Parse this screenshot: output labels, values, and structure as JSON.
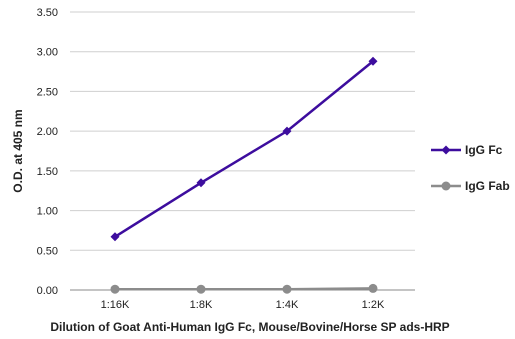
{
  "chart_data": {
    "type": "line",
    "title": "",
    "xlabel": "Dilution of Goat Anti-Human IgG Fc, Mouse/Bovine/Horse SP ads-HRP",
    "ylabel": "O.D. at 405 nm",
    "categories": [
      "1:16K",
      "1:8K",
      "1:4K",
      "1:2K"
    ],
    "ylim": [
      0,
      3.5
    ],
    "yticks": [
      "0.00",
      "0.50",
      "1.00",
      "1.50",
      "2.00",
      "2.50",
      "3.00",
      "3.50"
    ],
    "grid": true,
    "legend_position": "right",
    "series": [
      {
        "name": "IgG Fc",
        "values": [
          0.67,
          1.35,
          2.0,
          2.88
        ],
        "color": "#3d0d9e",
        "marker": "diamond"
      },
      {
        "name": "IgG Fab",
        "values": [
          0.01,
          0.01,
          0.01,
          0.02
        ],
        "color": "#8c8c8c",
        "marker": "circle"
      }
    ]
  }
}
